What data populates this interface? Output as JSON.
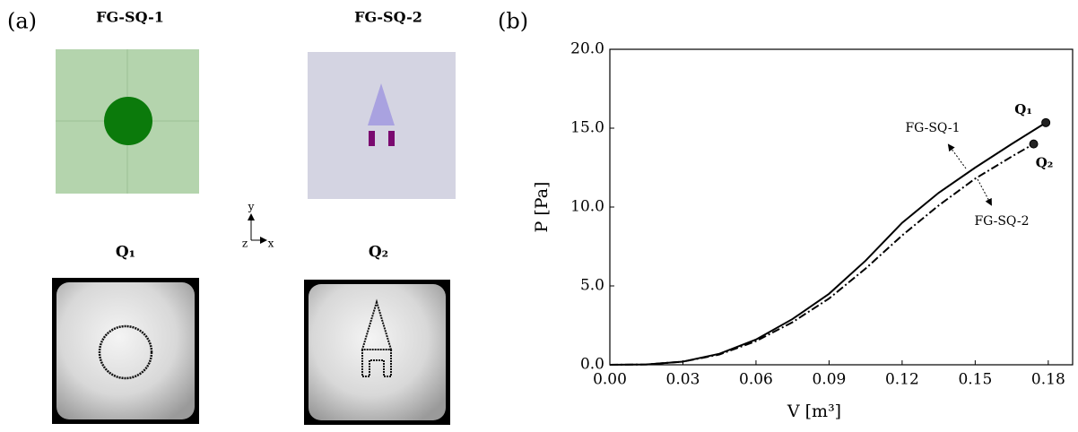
{
  "panel_a": {
    "label": "(a)",
    "images": [
      {
        "title": "FG-SQ-1"
      },
      {
        "title": "FG-SQ-2"
      },
      {
        "title": "Q₁"
      },
      {
        "title": "Q₂"
      }
    ],
    "triad": {
      "x": "x",
      "y": "y",
      "z": "z"
    }
  },
  "chart_data": {
    "type": "line",
    "panel_label": "(b)",
    "x_label": "V [m³]",
    "y_label": "P [Pa]",
    "xlim": [
      0,
      0.19
    ],
    "ylim": [
      0,
      20
    ],
    "xticks": [
      {
        "value": 0,
        "label": "0.00"
      },
      {
        "value": 0.03,
        "label": "0.03"
      },
      {
        "value": 0.06,
        "label": "0.06"
      },
      {
        "value": 0.09,
        "label": "0.09"
      },
      {
        "value": 0.12,
        "label": "0.12"
      },
      {
        "value": 0.15,
        "label": "0.15"
      },
      {
        "value": 0.18,
        "label": "0.18"
      }
    ],
    "yticks": [
      {
        "value": 0,
        "label": "0.0"
      },
      {
        "value": 5,
        "label": "5.0"
      },
      {
        "value": 10,
        "label": "10.0"
      },
      {
        "value": 15,
        "label": "15.0"
      },
      {
        "value": 20,
        "label": "20.0"
      }
    ],
    "grid": false,
    "series": [
      {
        "name": "FG-SQ-1",
        "color": "#000000",
        "dash": "solid",
        "x": [
          0,
          0.015,
          0.03,
          0.045,
          0.06,
          0.075,
          0.09,
          0.105,
          0.12,
          0.135,
          0.15,
          0.165,
          0.179
        ],
        "values": [
          0,
          0.02,
          0.2,
          0.7,
          1.6,
          2.9,
          4.5,
          6.6,
          9.0,
          10.9,
          12.5,
          14.0,
          15.35
        ]
      },
      {
        "name": "FG-SQ-2",
        "color": "#000000",
        "dash": "dashdot",
        "x": [
          0,
          0.015,
          0.03,
          0.045,
          0.06,
          0.075,
          0.09,
          0.105,
          0.12,
          0.135,
          0.15,
          0.165,
          0.174
        ],
        "values": [
          0,
          0.02,
          0.2,
          0.65,
          1.5,
          2.7,
          4.2,
          6.1,
          8.2,
          10.1,
          11.8,
          13.2,
          14.0
        ]
      }
    ],
    "points": [
      {
        "label": "Q₁",
        "x": 0.179,
        "y": 15.35
      },
      {
        "label": "Q₂",
        "x": 0.174,
        "y": 14.0
      }
    ]
  }
}
